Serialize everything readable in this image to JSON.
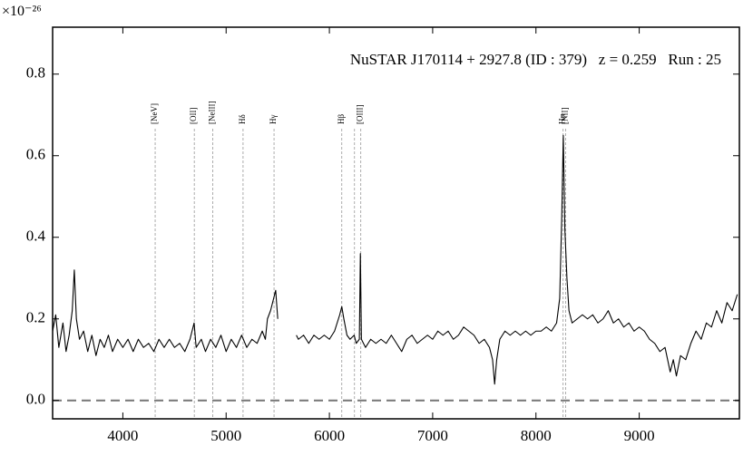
{
  "chart_data": {
    "type": "line",
    "title": "NuSTAR J170114 + 2927.8 (ID : 379)   z = 0.259   Run : 25",
    "y_multiplier": "×10⁻²⁶",
    "xlim": [
      3320,
      9970
    ],
    "ylim": [
      -0.045,
      0.915
    ],
    "xticks": [
      4000,
      5000,
      6000,
      7000,
      8000,
      9000
    ],
    "yticks": [
      {
        "value": 0,
        "label": "0.0"
      },
      0.2,
      0.4,
      0.6,
      0.8
    ],
    "hline": 0,
    "emission_lines": [
      {
        "label": "[NeV]",
        "x": 4313
      },
      {
        "label": "[OII]",
        "x": 4692
      },
      {
        "label": "[NeIII]",
        "x": 4871
      },
      {
        "label": "Hδ",
        "x": 5164
      },
      {
        "label": "Hγ",
        "x": 5464
      },
      {
        "label": "Hβ",
        "x": 6120
      },
      {
        "label": null,
        "x": 6243
      },
      {
        "label": "[OIII]",
        "x": 6304
      },
      {
        "label": "Hα",
        "x": 8263
      },
      {
        "label": "[NII]",
        "x": 8288
      }
    ],
    "series": [
      {
        "color": "#000000",
        "x": [
          3320,
          3350,
          3380,
          3420,
          3450,
          3480,
          3510,
          3530,
          3550,
          3580,
          3620,
          3660,
          3700,
          3740,
          3780,
          3820,
          3860,
          3900,
          3950,
          4000,
          4050,
          4100,
          4150,
          4200,
          4250,
          4300,
          4350,
          4400,
          4450,
          4500,
          4550,
          4600,
          4650,
          4690,
          4710,
          4760,
          4800,
          4850,
          4900,
          4950,
          5000,
          5050,
          5100,
          5150,
          5200,
          5250,
          5300,
          5350,
          5380,
          5400,
          5430,
          5460,
          5480,
          5500,
          5600,
          5680,
          5700,
          5750,
          5800,
          5850,
          5900,
          5950,
          6000,
          6050,
          6100,
          6120,
          6140,
          6170,
          6200,
          6240,
          6260,
          6290,
          6300,
          6310,
          6350,
          6400,
          6450,
          6500,
          6550,
          6600,
          6650,
          6700,
          6750,
          6800,
          6850,
          6900,
          6950,
          7000,
          7050,
          7100,
          7150,
          7200,
          7250,
          7300,
          7350,
          7400,
          7450,
          7500,
          7550,
          7580,
          7600,
          7620,
          7650,
          7700,
          7750,
          7800,
          7850,
          7900,
          7950,
          8000,
          8050,
          8100,
          8150,
          8200,
          8230,
          8250,
          8265,
          8280,
          8300,
          8320,
          8350,
          8400,
          8450,
          8500,
          8550,
          8600,
          8650,
          8700,
          8750,
          8800,
          8850,
          8900,
          8950,
          9000,
          9050,
          9100,
          9150,
          9200,
          9250,
          9300,
          9330,
          9360,
          9400,
          9450,
          9500,
          9550,
          9600,
          9650,
          9700,
          9750,
          9800,
          9850,
          9900,
          9950
        ],
        "values": [
          0.17,
          0.21,
          0.13,
          0.19,
          0.12,
          0.16,
          0.22,
          0.32,
          0.2,
          0.15,
          0.17,
          0.12,
          0.16,
          0.11,
          0.15,
          0.13,
          0.16,
          0.12,
          0.15,
          0.13,
          0.15,
          0.12,
          0.15,
          0.13,
          0.14,
          0.12,
          0.15,
          0.13,
          0.15,
          0.13,
          0.14,
          0.12,
          0.15,
          0.19,
          0.13,
          0.15,
          0.12,
          0.15,
          0.13,
          0.16,
          0.12,
          0.15,
          0.13,
          0.16,
          0.13,
          0.15,
          0.14,
          0.17,
          0.15,
          0.2,
          0.22,
          0.25,
          0.27,
          0.2,
          null,
          0.16,
          0.15,
          0.16,
          0.14,
          0.16,
          0.15,
          0.16,
          0.15,
          0.17,
          0.21,
          0.23,
          0.2,
          0.16,
          0.15,
          0.16,
          0.14,
          0.15,
          0.36,
          0.15,
          0.13,
          0.15,
          0.14,
          0.15,
          0.14,
          0.16,
          0.14,
          0.12,
          0.15,
          0.16,
          0.14,
          0.15,
          0.16,
          0.15,
          0.17,
          0.16,
          0.17,
          0.15,
          0.16,
          0.18,
          0.17,
          0.16,
          0.14,
          0.15,
          0.13,
          0.1,
          0.04,
          0.1,
          0.15,
          0.17,
          0.16,
          0.17,
          0.16,
          0.17,
          0.16,
          0.17,
          0.17,
          0.18,
          0.17,
          0.19,
          0.25,
          0.45,
          0.65,
          0.42,
          0.3,
          0.22,
          0.19,
          0.2,
          0.21,
          0.2,
          0.21,
          0.19,
          0.2,
          0.22,
          0.19,
          0.2,
          0.18,
          0.19,
          0.17,
          0.18,
          0.17,
          0.15,
          0.14,
          0.12,
          0.13,
          0.07,
          0.1,
          0.06,
          0.11,
          0.1,
          0.14,
          0.17,
          0.15,
          0.19,
          0.18,
          0.22,
          0.19,
          0.24,
          0.22,
          0.26
        ]
      }
    ]
  }
}
